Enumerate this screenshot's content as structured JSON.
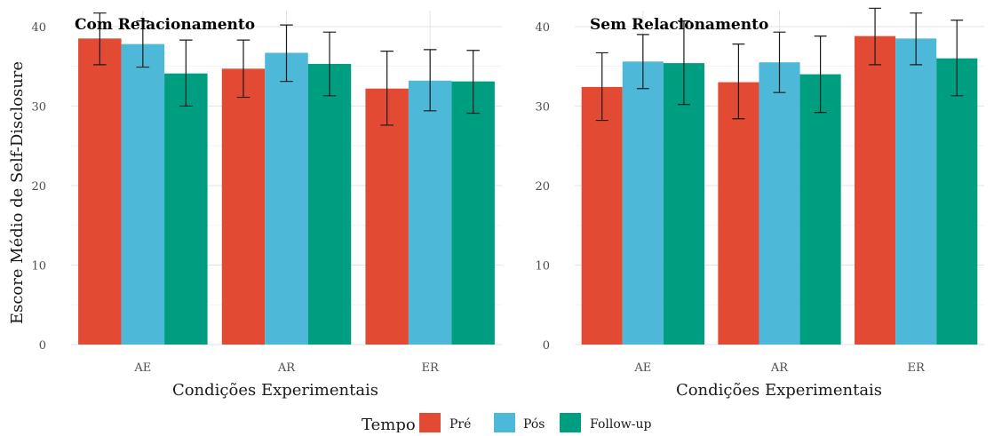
{
  "chart_data": [
    {
      "type": "bar",
      "title": "Com Relacionamento",
      "xlabel": "Condições Experimentais",
      "ylabel": "Escore Médio de Self-Disclosure",
      "categories": [
        "AE",
        "AR",
        "ER"
      ],
      "ylim": [
        0,
        42
      ],
      "yticks": [
        0,
        10,
        20,
        30,
        40
      ],
      "grid": true,
      "series": [
        {
          "name": "Pré",
          "values": [
            38.5,
            34.7,
            32.2
          ],
          "lower": [
            35.2,
            31.1,
            27.6
          ],
          "upper": [
            41.7,
            38.3,
            36.9
          ]
        },
        {
          "name": "Pós",
          "values": [
            37.8,
            36.7,
            33.2
          ],
          "lower": [
            34.9,
            33.1,
            29.4
          ],
          "upper": [
            40.7,
            40.2,
            37.1
          ]
        },
        {
          "name": "Follow-up",
          "values": [
            34.1,
            35.3,
            33.1
          ],
          "lower": [
            30.0,
            31.3,
            29.1
          ],
          "upper": [
            38.3,
            39.3,
            37.0
          ]
        }
      ]
    },
    {
      "type": "bar",
      "title": "Sem Relacionamento",
      "xlabel": "Condições Experimentais",
      "ylabel": "",
      "categories": [
        "AE",
        "AR",
        "ER"
      ],
      "ylim": [
        0,
        42
      ],
      "yticks": [
        0,
        10,
        20,
        30,
        40
      ],
      "grid": true,
      "series": [
        {
          "name": "Pré",
          "values": [
            32.4,
            33.0,
            38.8
          ],
          "lower": [
            28.2,
            28.4,
            35.2
          ],
          "upper": [
            36.7,
            37.8,
            42.3
          ]
        },
        {
          "name": "Pós",
          "values": [
            35.6,
            35.5,
            38.5
          ],
          "lower": [
            32.2,
            31.7,
            35.2
          ],
          "upper": [
            39.0,
            39.3,
            41.7
          ]
        },
        {
          "name": "Follow-up",
          "values": [
            35.4,
            34.0,
            36.0
          ],
          "lower": [
            30.2,
            29.2,
            31.3
          ],
          "upper": [
            40.7,
            38.8,
            40.8
          ]
        }
      ]
    }
  ],
  "legend": {
    "title": "Tempo",
    "placement": "bottom",
    "items": [
      {
        "label": "Pré",
        "color": "#e24a33"
      },
      {
        "label": "Pós",
        "color": "#4eb8d8"
      },
      {
        "label": "Follow-up",
        "color": "#009e81"
      }
    ]
  }
}
